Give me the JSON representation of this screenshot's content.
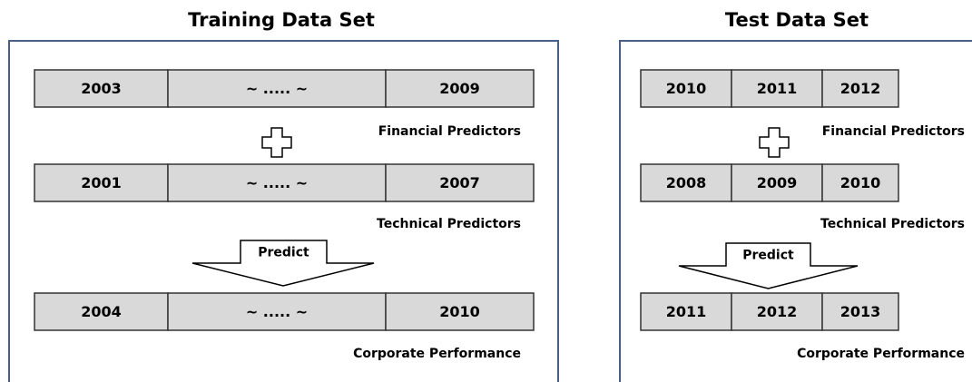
{
  "panels": [
    {
      "title": "Training Data Set",
      "rows": [
        {
          "cells": [
            "2003",
            "~ ..... ~",
            "2009"
          ],
          "label": "Financial Predictors"
        },
        {
          "cells": [
            "2001",
            "~ ..... ~",
            "2007"
          ],
          "label": "Technical Predictors"
        },
        {
          "cells": [
            "2004",
            "~ ..... ~",
            "2010"
          ],
          "label": "Corporate Performance"
        }
      ],
      "arrow_label": "Predict"
    },
    {
      "title": "Test Data Set",
      "rows": [
        {
          "cells": [
            "2010",
            "2011",
            "2012"
          ],
          "label": "Financial Predictors"
        },
        {
          "cells": [
            "2008",
            "2009",
            "2010"
          ],
          "label": "Technical Predictors"
        },
        {
          "cells": [
            "2011",
            "2012",
            "2013"
          ],
          "label": "Corporate Performance"
        }
      ],
      "arrow_label": "Predict"
    }
  ]
}
